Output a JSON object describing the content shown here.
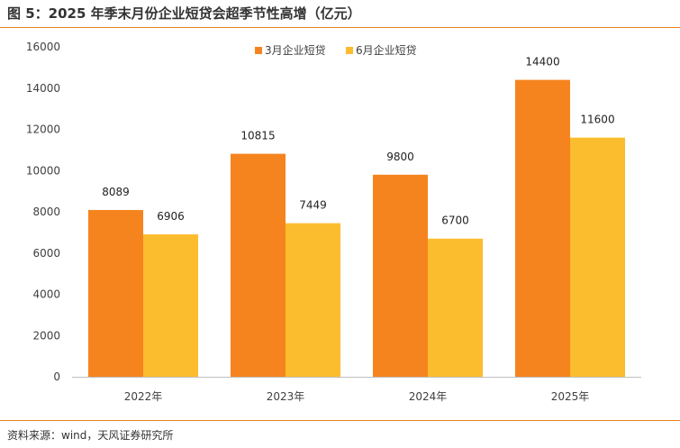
{
  "title": "图 5：2025 年季末月份企业短贷会超季节性高增（亿元）",
  "source": "资料来源：wind，天风证券研究所",
  "colors": {
    "rule": "#E8811E",
    "series1": "#F5841F",
    "series2": "#FBBD2E"
  },
  "chart_data": {
    "type": "bar",
    "categories": [
      "2022年",
      "2023年",
      "2024年",
      "2025年"
    ],
    "series": [
      {
        "name": "3月企业短贷",
        "values": [
          8089,
          10815,
          9800,
          14400
        ]
      },
      {
        "name": "6月企业短贷",
        "values": [
          6906,
          7449,
          6700,
          11600
        ]
      }
    ],
    "ylim": [
      0,
      16000
    ],
    "yticks": [
      "0",
      "2000",
      "4000",
      "6000",
      "8000",
      "10000",
      "12000",
      "14000",
      "16000"
    ],
    "grid": false,
    "legend": "top-center"
  }
}
